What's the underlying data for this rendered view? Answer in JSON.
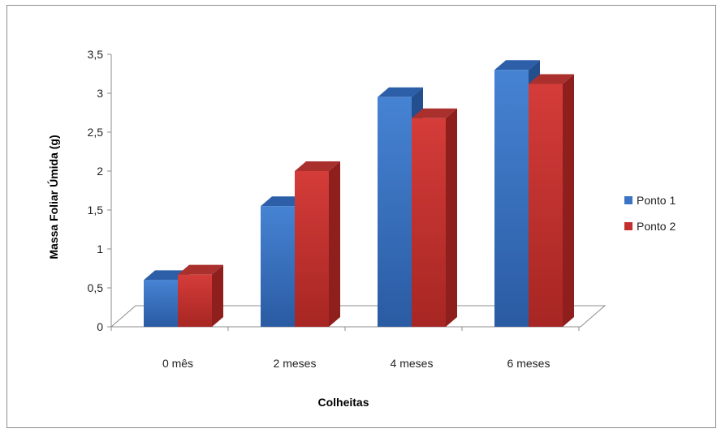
{
  "chart_data": {
    "type": "bar",
    "title": "",
    "xlabel": "Colheitas",
    "ylabel": "Massa Foliar Úmida (g)",
    "categories": [
      "0 mês",
      "2 meses",
      "4 meses",
      "6 meses"
    ],
    "series": [
      {
        "name": "Ponto 1",
        "values": [
          0.6,
          1.55,
          2.95,
          3.3
        ],
        "color": "#3b74c4"
      },
      {
        "name": "Ponto 2",
        "values": [
          0.67,
          2.0,
          2.68,
          3.12
        ],
        "color": "#c4302e"
      }
    ],
    "ylim": [
      0,
      3.5
    ],
    "yticks": [
      "0",
      "0,5",
      "1",
      "1,5",
      "2",
      "2,5",
      "3",
      "3,5"
    ],
    "ytick_values": [
      0,
      0.5,
      1,
      1.5,
      2,
      2.5,
      3,
      3.5
    ],
    "grid": false,
    "legend_position": "right",
    "style": "3d-clustered-column"
  }
}
